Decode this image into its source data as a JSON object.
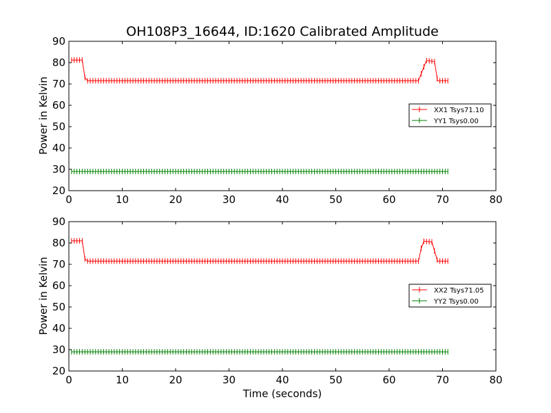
{
  "chart_data": [
    {
      "type": "line",
      "title": "OH108P3_16644, ID:1620 Calibrated Amplitude",
      "xlabel": "",
      "ylabel": "Power in Kelvin",
      "xlim": [
        0,
        80
      ],
      "ylim": [
        20,
        90
      ],
      "xticks": [
        "0",
        "10",
        "20",
        "30",
        "40",
        "50",
        "60",
        "70",
        "80"
      ],
      "yticks": [
        "20",
        "30",
        "40",
        "50",
        "60",
        "70",
        "80",
        "90"
      ],
      "grid": false,
      "legend_position": "right",
      "series": [
        {
          "name": "XX1 Tsys71.10",
          "color": "#ff0000",
          "segments": [
            {
              "x": [
                0.5,
                2.5
              ],
              "y": [
                81.2,
                81.2
              ]
            },
            {
              "x": [
                2.5,
                3.0
              ],
              "y": [
                81.2,
                73.0
              ]
            },
            {
              "x": [
                3.0,
                3.5
              ],
              "y": [
                73.0,
                71.5
              ]
            },
            {
              "x": [
                3.5,
                65.5
              ],
              "y": [
                71.5,
                71.5
              ]
            },
            {
              "x": [
                65.5,
                66.5
              ],
              "y": [
                71.5,
                78.0
              ]
            },
            {
              "x": [
                66.5,
                67.0
              ],
              "y": [
                78.0,
                81.0
              ]
            },
            {
              "x": [
                67.0,
                68.5
              ],
              "y": [
                81.0,
                80.5
              ]
            },
            {
              "x": [
                68.5,
                69.0
              ],
              "y": [
                80.5,
                72.5
              ]
            },
            {
              "x": [
                69.0,
                71.0
              ],
              "y": [
                71.5,
                71.5
              ]
            }
          ],
          "tsys": 71.1
        },
        {
          "name": "YY1 Tsys0.00",
          "color": "#008000",
          "segments": [
            {
              "x": [
                0.5,
                71.0
              ],
              "y": [
                29.0,
                29.0
              ]
            }
          ],
          "tsys": 0.0
        }
      ]
    },
    {
      "type": "line",
      "title": "",
      "xlabel": "Time (seconds)",
      "ylabel": "Power in Kelvin",
      "xlim": [
        0,
        80
      ],
      "ylim": [
        20,
        90
      ],
      "xticks": [
        "0",
        "10",
        "20",
        "30",
        "40",
        "50",
        "60",
        "70",
        "80"
      ],
      "yticks": [
        "20",
        "30",
        "40",
        "50",
        "60",
        "70",
        "80",
        "90"
      ],
      "grid": false,
      "legend_position": "right",
      "series": [
        {
          "name": "XX2 Tsys71.05",
          "color": "#ff0000",
          "segments": [
            {
              "x": [
                0.5,
                2.5
              ],
              "y": [
                81.0,
                81.0
              ]
            },
            {
              "x": [
                2.5,
                3.0
              ],
              "y": [
                81.0,
                72.5
              ]
            },
            {
              "x": [
                3.0,
                3.5
              ],
              "y": [
                72.5,
                71.5
              ]
            },
            {
              "x": [
                3.5,
                65.5
              ],
              "y": [
                71.5,
                71.5
              ]
            },
            {
              "x": [
                65.5,
                66.0
              ],
              "y": [
                71.5,
                77.5
              ]
            },
            {
              "x": [
                66.0,
                66.5
              ],
              "y": [
                77.5,
                80.8
              ]
            },
            {
              "x": [
                66.5,
                68.0
              ],
              "y": [
                80.8,
                80.5
              ]
            },
            {
              "x": [
                68.0,
                69.0
              ],
              "y": [
                80.5,
                72.0
              ]
            },
            {
              "x": [
                69.0,
                71.0
              ],
              "y": [
                71.5,
                71.5
              ]
            }
          ],
          "tsys": 71.05
        },
        {
          "name": "YY2 Tsys0.00",
          "color": "#008000",
          "segments": [
            {
              "x": [
                0.5,
                71.0
              ],
              "y": [
                29.0,
                29.0
              ]
            }
          ],
          "tsys": 0.0
        }
      ]
    }
  ]
}
